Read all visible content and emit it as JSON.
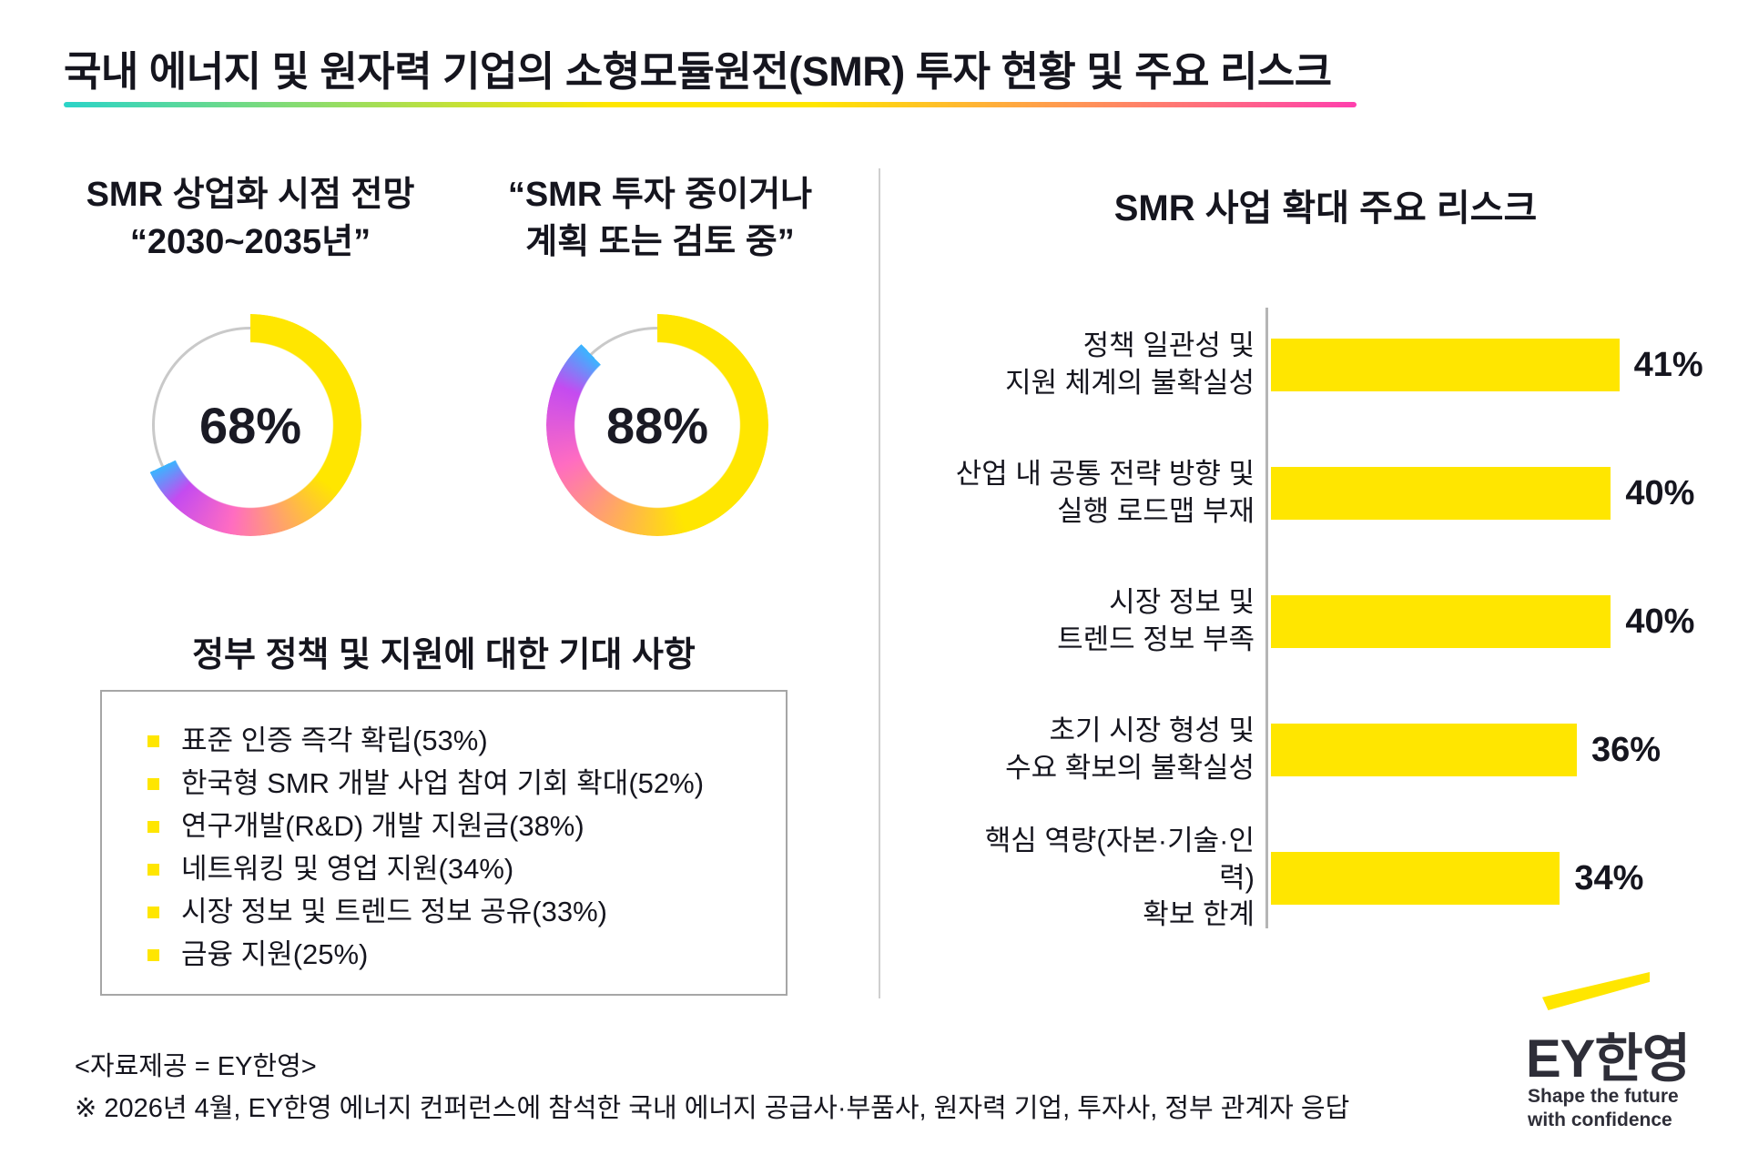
{
  "header": {
    "title": "국내 에너지 및 원자력 기업의 소형모듈원전(SMR) 투자 현황 및 주요 리스크",
    "underline_colors": [
      "#2bd4c8",
      "#ffe600",
      "#ff3fae"
    ]
  },
  "chart_data": [
    {
      "id": "smr-commercialization-outlook",
      "type": "pie",
      "subtype": "donut",
      "title_lines": [
        "SMR 상업화 시점 전망",
        "“2030~2035년”"
      ],
      "value": 68,
      "remainder": 32,
      "center_label": "68%",
      "gradient": [
        "#ffe600",
        "#ff6cc1",
        "#c44bf0",
        "#3ab5ff"
      ],
      "track_color": "#c9c9c9"
    },
    {
      "id": "smr-investment-status",
      "type": "pie",
      "subtype": "donut",
      "title_lines": [
        "“SMR 투자 중이거나",
        "계획 또는 검토 중”"
      ],
      "value": 88,
      "remainder": 12,
      "center_label": "88%",
      "gradient": [
        "#ffe600",
        "#ff6cc1",
        "#c44bf0",
        "#3ab5ff"
      ],
      "track_color": "#c9c9c9"
    },
    {
      "id": "smr-expansion-risks",
      "type": "bar",
      "orientation": "horizontal",
      "title": "SMR 사업 확대 주요 리스크",
      "categories": [
        "정책 일관성 및 지원 체계의 불확실성",
        "산업 내 공통 전략 방향 및 실행 로드맵 부재",
        "시장 정보 및 트렌드 정보 부족",
        "초기 시장 형성 및 수요 확보의 불확실성",
        "핵심 역량(자본·기술·인력) 확보 한계"
      ],
      "categories_lines": [
        [
          "정책 일관성 및",
          "지원 체계의 불확실성"
        ],
        [
          "산업 내 공통 전략 방향 및",
          "실행 로드맵 부재"
        ],
        [
          "시장 정보 및",
          "트렌드 정보 부족"
        ],
        [
          "초기 시장 형성 및",
          "수요 확보의 불확실성"
        ],
        [
          "핵심 역량(자본·기술·인력)",
          "확보 한계"
        ]
      ],
      "values": [
        41,
        40,
        40,
        36,
        34
      ],
      "value_labels": [
        "41%",
        "40%",
        "40%",
        "36%",
        "34%"
      ],
      "unit": "%",
      "xlim": [
        0,
        45
      ],
      "bar_color": "#ffe600",
      "axis_color": "#b5b5b5",
      "grid": false,
      "legend": false
    }
  ],
  "expectations": {
    "title": "정부 정책 및 지원에 대한 기대 사항",
    "bullet_color": "#ffe600",
    "items": [
      "표준 인증 즉각 확립(53%)",
      "한국형 SMR 개발 사업 참여 기회 확대(52%)",
      "연구개발(R&D) 개발 지원금(38%)",
      "네트워킹 및 영업 지원(34%)",
      "시장 정보 및 트렌드 정보 공유(33%)",
      "금융 지원(25%)"
    ]
  },
  "footer": {
    "source": "<자료제공 = EY한영>",
    "note": "※ 2026년 4월, EY한영 에너지 컨퍼런스에 참석한 국내 에너지 공급사·부품사, 원자력 기업, 투자사, 정부 관계자 응답"
  },
  "logo": {
    "brand": "EY한영",
    "tagline_lines": [
      "Shape the future",
      "with confidence"
    ],
    "beam_color": "#ffe600",
    "text_color": "#2e2e38"
  }
}
